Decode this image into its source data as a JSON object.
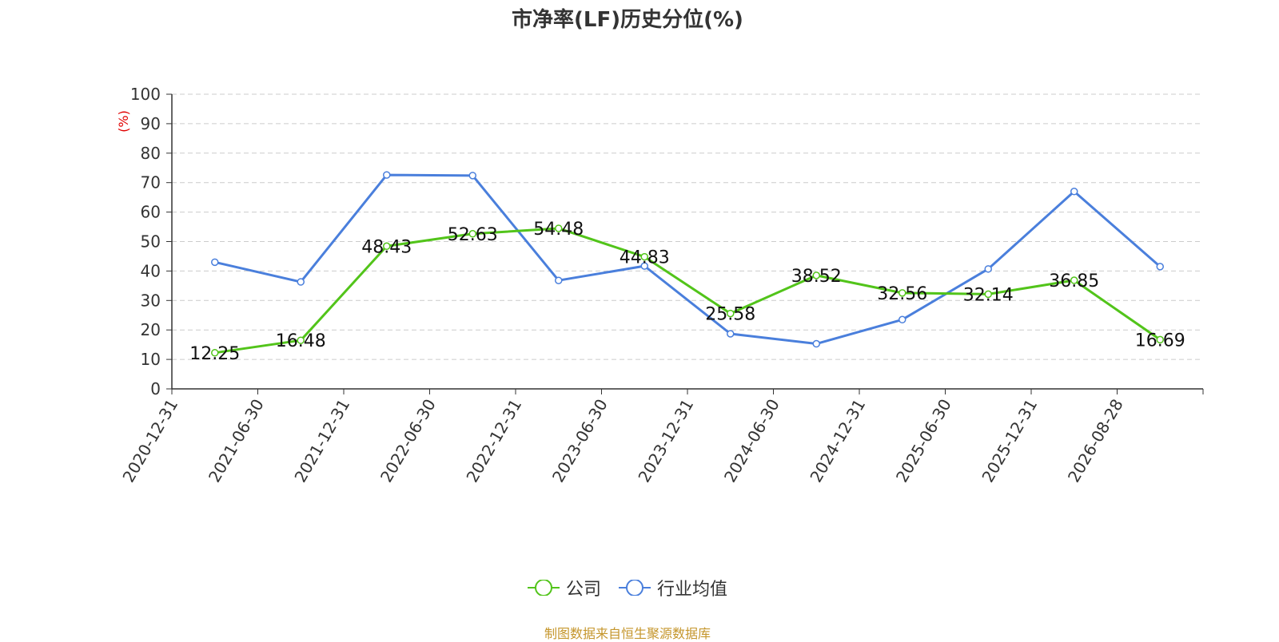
{
  "chart_data": {
    "type": "line",
    "title": "市净率(LF)历史分位(%)",
    "ylabel": "(%)",
    "ylim": [
      0,
      100
    ],
    "yticks": [
      0,
      10,
      20,
      30,
      40,
      50,
      60,
      70,
      80,
      90,
      100
    ],
    "categories": [
      "2020-12-31",
      "2021-06-30",
      "2021-12-31",
      "2022-06-30",
      "2022-12-31",
      "2023-06-30",
      "2023-12-31",
      "2024-06-30",
      "2024-12-31",
      "2025-06-30",
      "2025-12-31",
      "2026-08-28"
    ],
    "series": [
      {
        "name": "公司",
        "color": "#52c41a",
        "values": [
          12.25,
          16.48,
          48.43,
          52.63,
          54.48,
          44.83,
          25.58,
          38.52,
          32.56,
          32.14,
          36.85,
          16.69
        ],
        "labels": [
          "12.25",
          "16.48",
          "48.43",
          "52.63",
          "54.48",
          "44.83",
          "25.58",
          "38.52",
          "32.56",
          "32.14",
          "36.85",
          "16.69"
        ]
      },
      {
        "name": "行业均值",
        "color": "#4a7fdc",
        "values": [
          43.0,
          36.3,
          72.6,
          72.4,
          36.8,
          41.7,
          18.7,
          15.3,
          23.5,
          40.7,
          67.0,
          41.5
        ]
      }
    ],
    "grid": true,
    "legend_position": "bottom-center"
  },
  "source_note": "制图数据来自恒生聚源数据库"
}
